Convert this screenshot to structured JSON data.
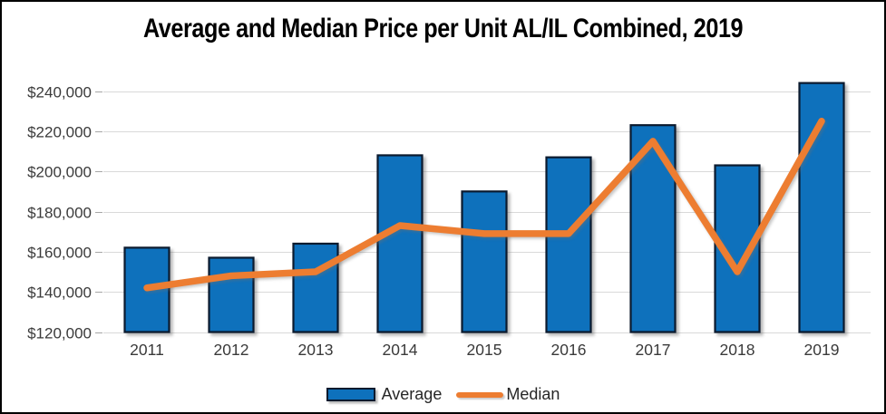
{
  "figure": {
    "title": "Average and Median Price per Unit AL/IL Combined, 2019"
  },
  "chart_data": {
    "type": "bar",
    "title": "Average and Median Price per Unit AL/IL Combined, 2019",
    "categories": [
      "2011",
      "2012",
      "2013",
      "2014",
      "2015",
      "2016",
      "2017",
      "2018",
      "2019"
    ],
    "series": [
      {
        "name": "Average",
        "chart_type": "bar",
        "color": "#0e71bc",
        "border_color": "#0b1a2e",
        "values": [
          162000,
          157000,
          164000,
          208000,
          190000,
          207000,
          223000,
          203000,
          244000
        ]
      },
      {
        "name": "Median",
        "chart_type": "line",
        "color": "#ed7d31",
        "values": [
          142000,
          148000,
          150000,
          173000,
          169000,
          169000,
          215000,
          150000,
          225000
        ]
      }
    ],
    "xlabel": "",
    "ylabel": "",
    "ylim": [
      120000,
      240000
    ],
    "y_tick_step": 20000,
    "y_ticks": [
      120000,
      140000,
      160000,
      180000,
      200000,
      220000,
      240000
    ],
    "y_tick_labels": [
      "$120,000",
      "$140,000",
      "$160,000",
      "$180,000",
      "$200,000",
      "$220,000",
      "$240,000"
    ],
    "grid": true,
    "gridline_color": "#d9d9d9",
    "tick_color": "#a6a6a6",
    "axis_label_color": "#3a3a3a",
    "legend_position": "bottom"
  }
}
